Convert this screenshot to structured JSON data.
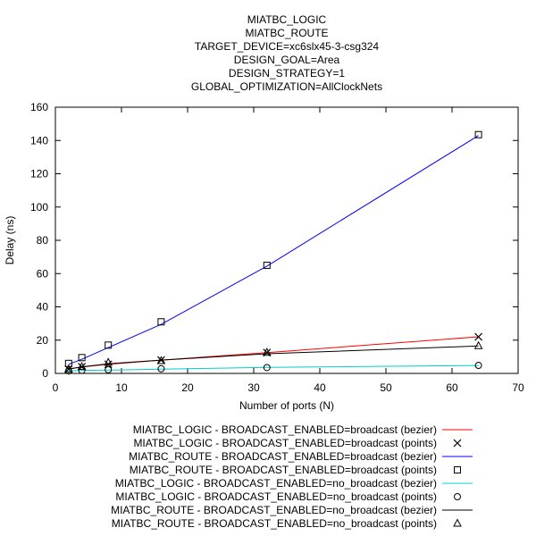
{
  "chart_data": {
    "type": "line",
    "title_lines": [
      "MIATBC_LOGIC",
      "MIATBC_ROUTE",
      "TARGET_DEVICE=xc6slx45-3-csg324",
      "DESIGN_GOAL=Area",
      "DESIGN_STRATEGY=1",
      "GLOBAL_OPTIMIZATION=AllClockNets"
    ],
    "xlabel": "Number of ports (N)",
    "ylabel": "Delay (ns)",
    "xlim": [
      0,
      70
    ],
    "ylim": [
      0,
      160
    ],
    "xticks": [
      0,
      10,
      20,
      30,
      40,
      50,
      60,
      70
    ],
    "yticks": [
      0,
      20,
      40,
      60,
      80,
      100,
      120,
      140,
      160
    ],
    "grid": false,
    "legend_position": "below plot",
    "series": [
      {
        "name": "MIATBC_LOGIC -  BROADCAST_ENABLED=broadcast (bezier)",
        "style": "line",
        "color": "#ff0000",
        "x": [
          2,
          4,
          8,
          16,
          32,
          64
        ],
        "y": [
          2.8,
          3.8,
          5.5,
          8.0,
          12.5,
          22.0
        ]
      },
      {
        "name": "MIATBC_LOGIC -  BROADCAST_ENABLED=broadcast (points)",
        "style": "points",
        "marker": "cross",
        "color": "#000000",
        "x": [
          2,
          4,
          8,
          16,
          32,
          64
        ],
        "y": [
          2.5,
          4.0,
          5.5,
          8.0,
          12.5,
          22.0
        ]
      },
      {
        "name": "MIATBC_ROUTE -  BROADCAST_ENABLED=broadcast (bezier)",
        "style": "line",
        "color": "#0000ff",
        "x": [
          2,
          4,
          8,
          16,
          32,
          64
        ],
        "y": [
          5.5,
          8.5,
          15.5,
          29.5,
          64.5,
          143.0
        ]
      },
      {
        "name": "MIATBC_ROUTE -  BROADCAST_ENABLED=broadcast (points)",
        "style": "points",
        "marker": "square",
        "color": "#000000",
        "x": [
          2,
          4,
          8,
          16,
          32,
          64
        ],
        "y": [
          6.0,
          9.5,
          17.0,
          31.0,
          65.0,
          143.5
        ]
      },
      {
        "name": "MIATBC_LOGIC -  BROADCAST_ENABLED=no_broadcast (bezier)",
        "style": "line",
        "color": "#00cccc",
        "x": [
          2,
          4,
          8,
          16,
          32,
          64
        ],
        "y": [
          1.5,
          1.8,
          2.0,
          2.6,
          3.6,
          4.8
        ]
      },
      {
        "name": "MIATBC_LOGIC -  BROADCAST_ENABLED=no_broadcast (points)",
        "style": "points",
        "marker": "circle",
        "color": "#000000",
        "x": [
          2,
          4,
          8,
          16,
          32,
          64
        ],
        "y": [
          1.5,
          1.8,
          2.2,
          2.8,
          3.5,
          4.8
        ]
      },
      {
        "name": "MIATBC_ROUTE -  BROADCAST_ENABLED=no_broadcast (bezier)",
        "style": "line",
        "color": "#000000",
        "x": [
          2,
          4,
          8,
          16,
          32,
          64
        ],
        "y": [
          2.5,
          4.0,
          5.8,
          8.0,
          11.8,
          16.5
        ]
      },
      {
        "name": "MIATBC_ROUTE -  BROADCAST_ENABLED=no_broadcast (points)",
        "style": "points",
        "marker": "triangle",
        "color": "#000000",
        "x": [
          2,
          4,
          8,
          16,
          32,
          64
        ],
        "y": [
          2.5,
          4.0,
          6.5,
          7.5,
          12.5,
          16.5
        ]
      }
    ]
  }
}
